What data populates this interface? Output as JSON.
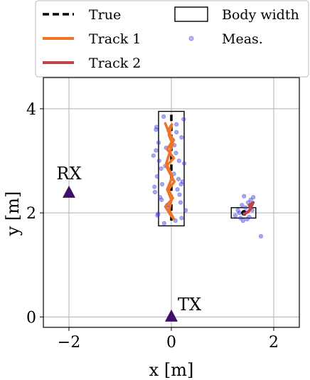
{
  "chart_data": {
    "type": "scatter",
    "xlabel": "x [m]",
    "ylabel": "y [m]",
    "xlim": [
      -2.5,
      2.5
    ],
    "ylim": [
      -0.2,
      4.6
    ],
    "xticks": [
      -2,
      0,
      2
    ],
    "yticks": [
      0,
      2,
      4
    ],
    "xtick_labels": [
      "−2",
      "0",
      "2"
    ],
    "ytick_labels": [
      "0",
      "2",
      "4"
    ],
    "grid": true,
    "legend_placement": "top",
    "legend": {
      "true": "True",
      "track1": "Track 1",
      "track2": "Track 2",
      "body_width": "Body width",
      "meas": "Meas."
    },
    "colors": {
      "true": "#000000",
      "track1": "#f07427",
      "track2": "#c0424a",
      "meas": "#3b3bd9",
      "marker": "#3f0f6b"
    },
    "markers": [
      {
        "label": "RX",
        "x": -2.0,
        "y": 2.4
      },
      {
        "label": "TX",
        "x": 0.0,
        "y": 0.02
      }
    ],
    "body_boxes": [
      {
        "x0": -0.25,
        "y0": 1.75,
        "x1": 0.25,
        "y1": 3.95
      },
      {
        "x0": 1.17,
        "y0": 1.9,
        "x1": 1.65,
        "y1": 2.1
      }
    ],
    "true_paths": [
      {
        "x": [
          0,
          0
        ],
        "y": [
          1.85,
          3.9
        ]
      }
    ],
    "true_points": [
      {
        "x": 1.42,
        "y": 2.0
      }
    ],
    "track1": {
      "x": [
        -0.12,
        -0.05,
        0.02,
        -0.08,
        0.05,
        -0.1,
        -0.02,
        0.06,
        -0.06,
        0.03,
        -0.12,
        -0.03,
        0.05,
        -0.04,
        0.0,
        -0.08,
        0.02,
        -0.1,
        -0.02,
        0.04,
        -0.07,
        0.01,
        -0.05,
        0.03
      ],
      "y": [
        3.72,
        3.55,
        3.38,
        3.22,
        3.05,
        2.9,
        2.74,
        2.6,
        2.44,
        2.28,
        2.12,
        1.98,
        1.88,
        2.05,
        2.25,
        2.45,
        2.7,
        2.95,
        3.2,
        3.4,
        3.58,
        3.7,
        3.5,
        3.3
      ]
    },
    "track2": {
      "x": [
        1.42,
        1.5,
        1.55,
        1.52,
        1.6,
        1.56
      ],
      "y": [
        1.98,
        2.02,
        2.08,
        2.15,
        2.2,
        2.12
      ]
    },
    "measurements": {
      "x": [
        -0.3,
        -0.25,
        -0.15,
        0.1,
        0.2,
        -0.35,
        -0.1,
        0.15,
        -0.2,
        0.25,
        -0.28,
        0.05,
        -0.18,
        0.22,
        -0.32,
        0.12,
        -0.22,
        0.18,
        -0.05,
        0.28,
        -0.27,
        0.08,
        -0.14,
        0.2,
        -0.3,
        0.1,
        -0.24,
        0.16,
        -0.08,
        0.24,
        -0.33,
        0.03,
        -0.19,
        0.14,
        -0.26,
        0.09,
        -0.12,
        0.19,
        -0.29,
        0.06,
        1.25,
        1.3,
        1.35,
        1.4,
        1.45,
        1.5,
        1.55,
        1.6,
        1.38,
        1.48,
        1.58,
        1.42,
        1.52,
        1.33,
        1.75
      ],
      "y": [
        3.6,
        3.35,
        3.85,
        3.7,
        3.45,
        3.1,
        3.25,
        3.0,
        2.85,
        2.95,
        2.7,
        2.75,
        2.55,
        2.6,
        2.4,
        2.45,
        2.3,
        2.2,
        2.1,
        2.05,
        1.95,
        1.85,
        1.8,
        1.9,
        3.2,
        3.55,
        3.0,
        2.35,
        2.15,
        3.8,
        2.5,
        3.4,
        2.25,
        2.65,
        1.98,
        3.15,
        2.9,
        2.55,
        3.65,
        3.3,
        1.95,
        2.05,
        1.9,
        1.85,
        2.1,
        2.2,
        2.25,
        2.3,
        2.15,
        1.88,
        2.05,
        2.32,
        1.92,
        2.0,
        1.55
      ]
    }
  }
}
